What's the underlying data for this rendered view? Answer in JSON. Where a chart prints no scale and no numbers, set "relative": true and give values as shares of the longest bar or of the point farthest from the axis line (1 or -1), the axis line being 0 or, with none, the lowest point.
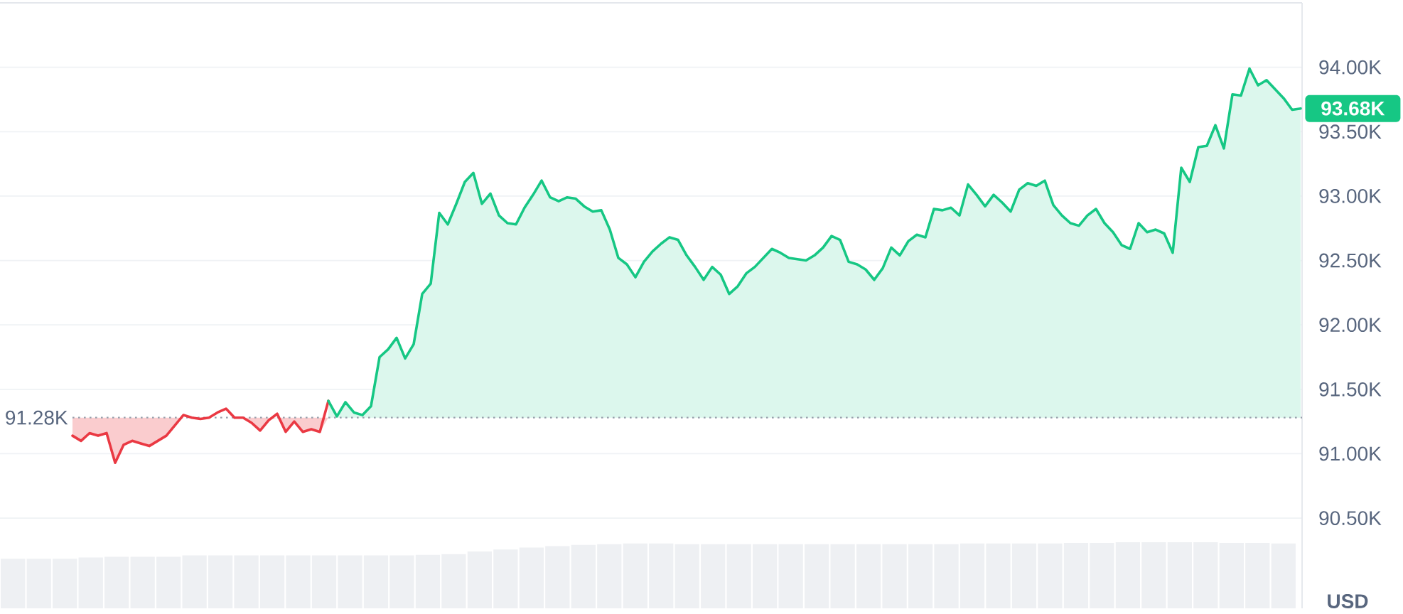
{
  "chart_data": [
    {
      "type": "area",
      "categories": [
        null,
        null,
        null,
        null,
        null,
        null,
        null,
        null,
        null,
        null,
        null,
        null,
        null,
        null,
        null,
        null,
        null,
        null,
        null,
        null,
        null,
        null,
        null,
        null,
        null,
        null,
        null,
        null,
        null,
        null,
        null,
        null,
        null,
        null,
        null,
        null,
        null,
        null,
        null,
        null,
        null,
        null,
        null,
        null,
        null,
        null,
        null,
        null,
        null,
        null,
        null,
        null,
        null,
        null,
        null,
        null,
        null,
        null,
        null,
        null,
        null,
        null,
        null,
        null,
        null,
        null,
        null,
        null,
        null,
        null,
        null,
        null,
        null,
        null,
        null,
        null,
        null,
        null,
        null,
        null,
        null,
        null,
        null,
        null,
        null,
        null,
        null,
        null,
        null,
        null,
        null,
        null,
        null,
        null,
        null,
        null,
        null,
        null,
        null,
        null,
        null,
        null,
        null,
        null,
        null,
        null,
        null,
        null,
        null,
        null,
        null,
        null,
        null,
        null,
        null,
        null,
        null,
        null,
        null,
        null,
        null,
        null,
        null,
        null,
        null,
        null,
        null,
        null,
        null,
        null,
        null,
        null,
        null,
        null,
        null,
        null,
        null,
        null,
        null,
        null,
        null,
        null,
        null,
        null,
        null
      ],
      "series": [
        {
          "type": "line",
          "color": "#ea3943",
          "values": [
            91140,
            91100,
            91160,
            91140,
            91160,
            90930,
            91070,
            91100,
            91080,
            91060,
            91100,
            91140,
            91220,
            91300,
            91280,
            91270,
            91280,
            91320,
            91350,
            91280,
            91280,
            91240,
            91180,
            91260,
            91310,
            91170,
            91250,
            91170,
            91190,
            91170,
            91410,
            null,
            null,
            null,
            null,
            null,
            null,
            null,
            null,
            null,
            null,
            null,
            null,
            null,
            null,
            null,
            null,
            null,
            null,
            null,
            null,
            null,
            null,
            null,
            null,
            null,
            null,
            null,
            null,
            null,
            null,
            null,
            null,
            null,
            null,
            null,
            null,
            null,
            null,
            null,
            null,
            null,
            null,
            null,
            null,
            null,
            null,
            null,
            null,
            null,
            null,
            null,
            null,
            null,
            null,
            null,
            null,
            null,
            null,
            null,
            null,
            null,
            null,
            null,
            null,
            null,
            null,
            null,
            null,
            null,
            null,
            null,
            null,
            null,
            null,
            null,
            null,
            null,
            null,
            null,
            null,
            null,
            null,
            null,
            null,
            null,
            null,
            null,
            null,
            null,
            null,
            null,
            null,
            null,
            null,
            null,
            null,
            null,
            null,
            null,
            null,
            null,
            null,
            null,
            null,
            null,
            null,
            null,
            null,
            null,
            null,
            null,
            null,
            null,
            null
          ],
          "lower": [
            91140,
            91100,
            91160,
            91140,
            91160,
            90930,
            91070,
            91100,
            91080,
            91060,
            91100,
            91140,
            91220,
            91280,
            91280,
            91270,
            91280,
            91280,
            91280,
            91280,
            91280,
            91240,
            91180,
            91260,
            91280,
            91170,
            91250,
            91170,
            91190,
            91170,
            91280,
            null,
            null,
            null,
            null,
            null,
            null,
            null,
            null,
            null,
            null,
            null,
            null,
            null,
            null,
            null,
            null,
            null,
            null,
            null,
            null,
            null,
            null,
            null,
            null,
            null,
            null,
            null,
            null,
            null,
            null,
            null,
            null,
            null,
            null,
            null,
            null,
            null,
            null,
            null,
            null,
            null,
            null,
            null,
            null,
            null,
            null,
            null,
            null,
            null,
            null,
            null,
            null,
            null,
            null,
            null,
            null,
            null,
            null,
            null,
            null,
            null,
            null,
            null,
            null,
            null,
            null,
            null,
            null,
            null,
            null,
            null,
            null,
            null,
            null,
            null,
            null,
            null,
            null,
            null,
            null,
            null,
            null,
            null,
            null,
            null,
            null,
            null,
            null,
            null,
            null,
            null,
            null,
            null,
            null,
            null,
            null,
            null,
            null,
            null,
            null,
            null,
            null,
            null,
            null,
            null,
            null,
            null,
            null,
            null,
            null,
            null,
            null,
            null,
            null
          ],
          "upper": [
            91280,
            91280,
            91280,
            91280,
            91280,
            91280,
            91280,
            91280,
            91280,
            91280,
            91280,
            91280,
            91280,
            91280,
            91280,
            91280,
            91280,
            91280,
            91280,
            91280,
            91280,
            91280,
            91280,
            91280,
            91280,
            91280,
            91280,
            91280,
            91280,
            91280,
            91280,
            null,
            null,
            null,
            null,
            null,
            null,
            null,
            null,
            null,
            null,
            null,
            null,
            null,
            null,
            null,
            null,
            null,
            null,
            null,
            null,
            null,
            null,
            null,
            null,
            null,
            null,
            null,
            null,
            null,
            null,
            null,
            null,
            null,
            null,
            null,
            null,
            null,
            null,
            null,
            null,
            null,
            null,
            null,
            null,
            null,
            null,
            null,
            null,
            null,
            null,
            null,
            null,
            null,
            null,
            null,
            null,
            null,
            null,
            null,
            null,
            null,
            null,
            null,
            null,
            null,
            null,
            null,
            null,
            null,
            null,
            null,
            null,
            null,
            null,
            null,
            null,
            null,
            null,
            null,
            null,
            null,
            null,
            null,
            null,
            null,
            null,
            null,
            null,
            null,
            null,
            null,
            null,
            null,
            null,
            null,
            null,
            null,
            null,
            null,
            null,
            null,
            null,
            null,
            null,
            null,
            null,
            null,
            null,
            null,
            null,
            null,
            null,
            null,
            null
          ]
        },
        {
          "color": "#16c784",
          "values": [
            null,
            null,
            null,
            null,
            null,
            null,
            null,
            null,
            null,
            null,
            null,
            null,
            null,
            null,
            null,
            null,
            null,
            null,
            null,
            null,
            null,
            null,
            null,
            null,
            null,
            null,
            null,
            null,
            null,
            null,
            91410,
            91290,
            91400,
            91320,
            91300,
            91370,
            91750,
            91810,
            91900,
            91740,
            91850,
            92240,
            92320,
            92870,
            92780,
            92940,
            93110,
            93180,
            92940,
            93020,
            92850,
            92790,
            92780,
            92910,
            93010,
            93120,
            92990,
            92960,
            92990,
            92980,
            92920,
            92880,
            92890,
            92740,
            92520,
            92470,
            92370,
            92490,
            92570,
            92630,
            92680,
            92660,
            92540,
            92450,
            92350,
            92450,
            92390,
            92240,
            92300,
            92400,
            92450,
            92520,
            92590,
            92560,
            92520,
            92510,
            92500,
            92540,
            92600,
            92690,
            92660,
            92490,
            92470,
            92430,
            92350,
            92440,
            92600,
            92540,
            92650,
            92700,
            92680,
            92900,
            92890,
            92910,
            92850,
            93090,
            93010,
            92920,
            93010,
            92950,
            92880,
            93050,
            93100,
            93080,
            93120,
            92930,
            92850,
            92790,
            92770,
            92850,
            92900,
            92790,
            92720,
            92620,
            92590,
            92790,
            92720,
            92740,
            92710,
            92560,
            93220,
            93110,
            93380,
            93390,
            93550,
            93370,
            93790,
            93780,
            93990,
            93860,
            93900,
            93830,
            93760,
            93670,
            93680
          ],
          "value_labels": [
            null,
            null,
            null,
            null,
            null,
            null,
            null,
            null,
            null,
            null,
            null,
            null,
            null,
            null,
            null,
            null,
            null,
            null,
            null,
            null,
            null,
            null,
            null,
            null,
            null,
            null,
            null,
            null,
            null,
            null,
            null,
            null,
            null,
            null,
            null,
            null,
            null,
            null,
            null,
            null,
            null,
            null,
            null,
            null,
            null,
            null,
            null,
            null,
            null,
            null,
            null,
            null,
            null,
            null,
            null,
            null,
            null,
            null,
            null,
            null,
            null,
            null,
            null,
            null,
            null,
            null,
            null,
            null,
            null,
            null,
            null,
            null,
            null,
            null,
            null,
            null,
            null,
            null,
            null,
            null,
            null,
            null,
            null,
            null,
            null,
            null,
            null,
            null,
            null,
            null,
            null,
            null,
            null,
            null,
            null,
            null,
            null,
            null,
            null,
            null,
            null,
            null,
            null,
            null,
            null,
            null,
            null,
            null,
            null,
            null,
            null,
            null,
            null,
            null,
            null,
            null,
            null,
            null,
            null,
            null,
            null,
            null,
            null,
            null,
            null,
            null,
            null,
            null,
            null,
            null,
            null,
            null,
            null,
            null,
            null,
            null,
            null,
            null,
            null,
            null,
            null,
            null,
            null,
            null,
            "93.68K"
          ]
        }
      ],
      "ylim": [
        89800,
        94500
      ],
      "yticks": [
        {
          "value": 90500,
          "label": "90.50K"
        },
        {
          "value": 91000,
          "label": "91.00K"
        },
        {
          "value": 91500,
          "label": "91.50K"
        },
        {
          "value": 92000,
          "label": "92.00K"
        },
        {
          "value": 92500,
          "label": "92.50K"
        },
        {
          "value": 93000,
          "label": "93.00K"
        },
        {
          "value": 93500,
          "label": "93.50K"
        },
        {
          "value": 94000,
          "label": "94.00K"
        }
      ],
      "ylabel": "USD",
      "grid": "y",
      "tick_labels": "y",
      "ref_lines": [
        {
          "axis": "y",
          "value": 91280,
          "label": "91.28K",
          "color": "#9aa1ad",
          "line_style": "dotted"
        }
      ]
    },
    {
      "type": "bar",
      "relative": true,
      "categories": [
        null,
        null,
        null,
        null,
        null,
        null,
        null,
        null,
        null,
        null,
        null,
        null,
        null,
        null,
        null,
        null,
        null,
        null,
        null,
        null,
        null,
        null,
        null,
        null,
        null,
        null,
        null,
        null,
        null,
        null,
        null,
        null,
        null,
        null,
        null,
        null,
        null,
        null,
        null,
        null,
        null,
        null,
        null,
        null,
        null,
        null,
        null,
        null,
        null,
        null
      ],
      "values": [
        0.75,
        0.75,
        0.75,
        0.77,
        0.78,
        0.78,
        0.78,
        0.8,
        0.8,
        0.8,
        0.8,
        0.8,
        0.8,
        0.8,
        0.8,
        0.8,
        0.81,
        0.82,
        0.86,
        0.89,
        0.92,
        0.94,
        0.96,
        0.97,
        0.98,
        0.98,
        0.97,
        0.97,
        0.97,
        0.97,
        0.97,
        0.97,
        0.97,
        0.97,
        0.97,
        0.97,
        0.97,
        0.98,
        0.98,
        0.98,
        0.98,
        0.99,
        0.99,
        1,
        1,
        1,
        1,
        0.99,
        0.99,
        0.98
      ],
      "color": "#eef0f3",
      "tick_labels": false
    }
  ]
}
